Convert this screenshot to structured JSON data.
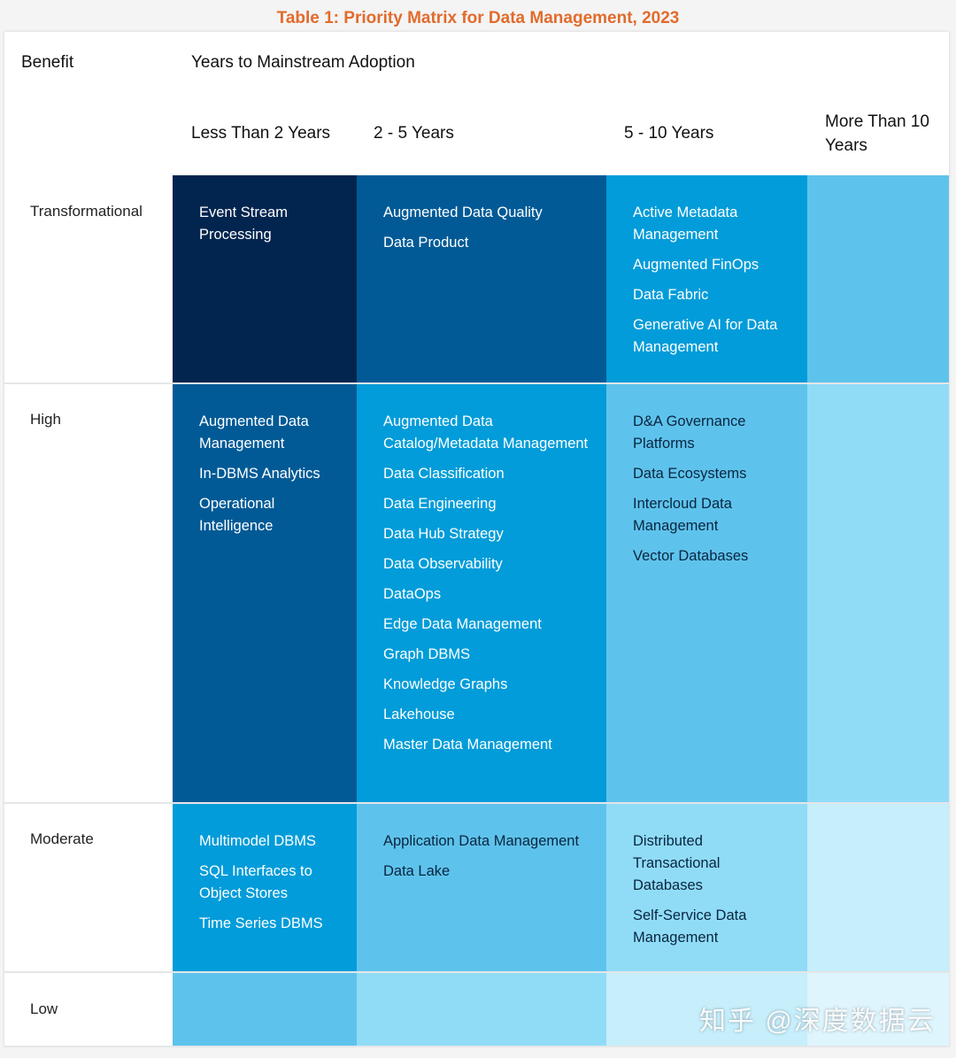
{
  "title": "Table 1: Priority Matrix for Data Management, 2023",
  "header": {
    "benefit": "Benefit",
    "years": "Years to Mainstream Adoption",
    "columns": [
      "Less Than 2 Years",
      "2 - 5 Years",
      "5 - 10 Years",
      "More Than 10 Years"
    ]
  },
  "colors": {
    "title": "#e26b2c",
    "dark_navy": "#02254f",
    "deep_blue": "#015a96",
    "bright_blue": "#019cd9",
    "sky_blue": "#5ec3ec",
    "light_sky": "#90dcf7",
    "pale_sky": "#c6eefb",
    "very_pale": "#dff5fd"
  },
  "rows": [
    {
      "label": "Transformational",
      "cells": [
        [
          "Event Stream Processing"
        ],
        [
          "Augmented Data Quality",
          "Data Product"
        ],
        [
          "Active Metadata Management",
          "Augmented FinOps",
          "Data Fabric",
          "Generative AI for Data Management"
        ],
        []
      ]
    },
    {
      "label": "High",
      "cells": [
        [
          "Augmented Data Management",
          "In-DBMS Analytics",
          "Operational Intelligence"
        ],
        [
          "Augmented Data Catalog/Metadata Management",
          "Data Classification",
          "Data Engineering",
          "Data Hub Strategy",
          "Data Observability",
          "DataOps",
          "Edge Data Management",
          "Graph DBMS",
          "Knowledge Graphs",
          "Lakehouse",
          "Master Data Management"
        ],
        [
          "D&A Governance Platforms",
          "Data Ecosystems",
          "Intercloud Data Management",
          "Vector Databases"
        ],
        []
      ]
    },
    {
      "label": "Moderate",
      "cells": [
        [
          "Multimodel DBMS",
          "SQL Interfaces to Object Stores",
          "Time Series DBMS"
        ],
        [
          "Application Data Management",
          "Data Lake"
        ],
        [
          "Distributed Transactional Databases",
          "Self-Service Data Management"
        ],
        []
      ]
    },
    {
      "label": "Low",
      "cells": [
        [],
        [],
        [],
        []
      ]
    }
  ],
  "watermark": "知乎 @深度数据云"
}
